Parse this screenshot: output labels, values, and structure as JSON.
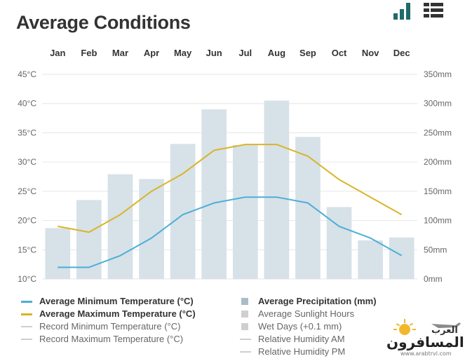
{
  "page": {
    "title": "Average Conditions"
  },
  "toolbar": {
    "chart_view_icon": "bar-chart-icon",
    "table_view_icon": "table-grid-icon"
  },
  "colors": {
    "min_temp": "#4bafd6",
    "max_temp": "#d9b42a",
    "precip_bar": "#d7e1e8",
    "grid": "#e6e6e6",
    "inactive_swatch": "#cfcfcf",
    "precip_swatch": "#a9bcc8"
  },
  "chart_data": {
    "type": "bar",
    "categories": [
      "Jan",
      "Feb",
      "Mar",
      "Apr",
      "May",
      "Jun",
      "Jul",
      "Aug",
      "Sep",
      "Oct",
      "Nov",
      "Dec"
    ],
    "y_left": {
      "ticks": [
        "45°C",
        "40°C",
        "35°C",
        "30°C",
        "25°C",
        "20°C",
        "15°C",
        "10°C"
      ],
      "min": 10,
      "max": 45
    },
    "y_right": {
      "ticks": [
        "350mm",
        "300mm",
        "250mm",
        "200mm",
        "150mm",
        "100mm",
        "50mm",
        "0mm"
      ],
      "min": 0,
      "max": 350
    },
    "grid": true,
    "series": [
      {
        "name": "Average Precipitation (mm)",
        "type": "bar",
        "axis": "right",
        "values": [
          87,
          135,
          179,
          171,
          231,
          290,
          229,
          305,
          243,
          123,
          66,
          71
        ]
      },
      {
        "name": "Average Minimum Temperature (°C)",
        "type": "line",
        "axis": "left",
        "values": [
          12,
          12,
          14,
          17,
          21,
          23,
          24,
          24,
          23,
          19,
          17,
          14
        ]
      },
      {
        "name": "Average Maximum Temperature (°C)",
        "type": "line",
        "axis": "left",
        "values": [
          19,
          18,
          21,
          25,
          28,
          32,
          33,
          33,
          31,
          27,
          24,
          21
        ]
      }
    ]
  },
  "legend": {
    "left": [
      {
        "label": "Average Minimum Temperature (°C)",
        "state": "active",
        "swatch": "line",
        "color": "#4bafd6"
      },
      {
        "label": "Average Maximum Temperature (°C)",
        "state": "active",
        "swatch": "line",
        "color": "#d9b42a"
      },
      {
        "label": "Record Minimum Temperature (°C)",
        "state": "inactive",
        "swatch": "line",
        "color": "#cfcfcf"
      },
      {
        "label": "Record Maximum Temperature (°C)",
        "state": "inactive",
        "swatch": "line",
        "color": "#cfcfcf"
      }
    ],
    "right": [
      {
        "label": "Average Precipitation (mm)",
        "state": "active",
        "swatch": "square",
        "color": "#a9bcc8"
      },
      {
        "label": "Average Sunlight Hours",
        "state": "inactive",
        "swatch": "square",
        "color": "#cfcfcf"
      },
      {
        "label": "Wet Days (+0.1 mm)",
        "state": "inactive",
        "swatch": "square",
        "color": "#cfcfcf"
      },
      {
        "label": "Relative Humidity AM",
        "state": "inactive",
        "swatch": "line",
        "color": "#cfcfcf"
      },
      {
        "label": "Relative Humidity PM",
        "state": "inactive",
        "swatch": "line",
        "color": "#cfcfcf"
      }
    ]
  },
  "watermark": {
    "icon": "sun-airplane-logo",
    "arabic_top": "العرب",
    "arabic_main": "المسافرون",
    "url": "www.arabtrvl.com"
  }
}
